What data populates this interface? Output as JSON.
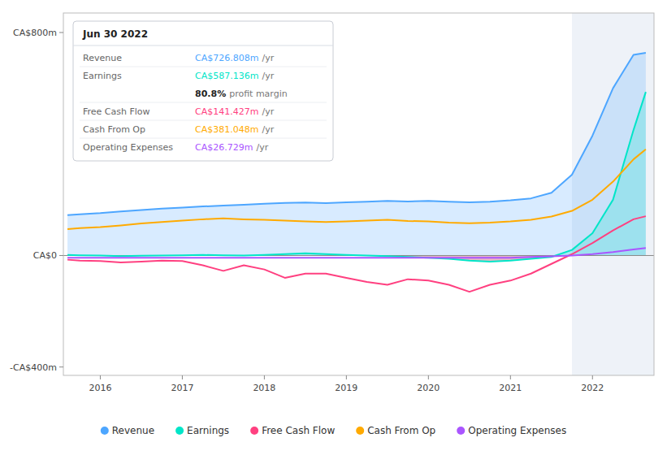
{
  "chart_data": {
    "type": "line",
    "x": [
      2015.6,
      2015.75,
      2016.0,
      2016.25,
      2016.5,
      2016.75,
      2017.0,
      2017.25,
      2017.5,
      2017.75,
      2018.0,
      2018.25,
      2018.5,
      2018.75,
      2019.0,
      2019.25,
      2019.5,
      2019.75,
      2020.0,
      2020.25,
      2020.5,
      2020.75,
      2021.0,
      2021.25,
      2021.5,
      2021.75,
      2022.0,
      2022.25,
      2022.5,
      2022.65
    ],
    "series": [
      {
        "name": "Revenue",
        "color": "#4da6ff",
        "type": "area",
        "values": [
          145,
          148,
          152,
          158,
          163,
          168,
          172,
          176,
          179,
          182,
          186,
          189,
          190,
          188,
          191,
          193,
          196,
          194,
          196,
          193,
          191,
          193,
          198,
          205,
          225,
          290,
          430,
          600,
          720,
          727
        ]
      },
      {
        "name": "Earnings",
        "color": "#00e5c8",
        "type": "area",
        "values": [
          2,
          1,
          0,
          -2,
          -1,
          0,
          1,
          2,
          1,
          0,
          2,
          5,
          8,
          5,
          2,
          0,
          -2,
          -5,
          -8,
          -12,
          -18,
          -22,
          -18,
          -12,
          -5,
          20,
          80,
          200,
          450,
          587
        ]
      },
      {
        "name": "Free Cash Flow",
        "color": "#ff4080",
        "type": "line",
        "values": [
          -15,
          -18,
          -20,
          -25,
          -22,
          -18,
          -20,
          -35,
          -55,
          -35,
          -50,
          -80,
          -65,
          -65,
          -80,
          -95,
          -105,
          -85,
          -90,
          -105,
          -130,
          -105,
          -90,
          -65,
          -30,
          5,
          45,
          90,
          130,
          141
        ]
      },
      {
        "name": "Cash From Op",
        "color": "#ffaa00",
        "type": "line",
        "values": [
          95,
          98,
          102,
          108,
          115,
          120,
          125,
          130,
          133,
          130,
          128,
          125,
          122,
          120,
          122,
          125,
          128,
          124,
          122,
          118,
          116,
          118,
          122,
          128,
          140,
          160,
          200,
          265,
          345,
          381
        ]
      },
      {
        "name": "Operating Expenses",
        "color": "#aa55ff",
        "type": "line",
        "values": [
          -8,
          -8,
          -8,
          -8,
          -8,
          -8,
          -8,
          -8,
          -8,
          -8,
          -8,
          -8,
          -8,
          -8,
          -8,
          -8,
          -8,
          -8,
          -8,
          -8,
          -8,
          -8,
          -8,
          -5,
          -3,
          0,
          5,
          12,
          22,
          27
        ]
      }
    ],
    "xlim": [
      2015.55,
      2022.75
    ],
    "xticks": [
      2016,
      2017,
      2018,
      2019,
      2020,
      2021,
      2022
    ],
    "ylim": [
      -430,
      870
    ],
    "yticks": [
      {
        "value": -400,
        "label": "-CA$400m"
      },
      {
        "value": 0,
        "label": "CA$0"
      },
      {
        "value": 800,
        "label": "CA$800m"
      }
    ],
    "grid": false,
    "legend": "bottom",
    "highlight_x": [
      2021.75,
      2022.75
    ],
    "tooltip": {
      "title": "Jun 30 2022",
      "rows": [
        {
          "label": "Revenue",
          "value": "CA$726.808m",
          "unit": "/yr",
          "color": "#4da6ff"
        },
        {
          "label": "Earnings",
          "value": "CA$587.136m",
          "unit": "/yr",
          "color": "#00e5c8"
        },
        {
          "value": "80.8%",
          "unit": "profit margin"
        },
        {
          "label": "Free Cash Flow",
          "value": "CA$141.427m",
          "unit": "/yr",
          "color": "#ff4080"
        },
        {
          "label": "Cash From Op",
          "value": "CA$381.048m",
          "unit": "/yr",
          "color": "#ffaa00"
        },
        {
          "label": "Operating Expenses",
          "value": "CA$26.729m",
          "unit": "/yr",
          "color": "#aa55ff"
        }
      ]
    }
  }
}
